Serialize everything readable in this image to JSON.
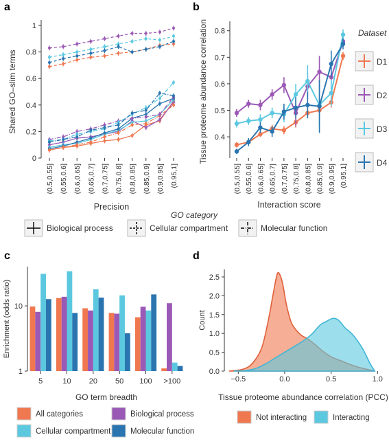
{
  "colors": {
    "D1": "#F07850",
    "D2": "#9B59B6",
    "D3": "#5BC8E0",
    "D4": "#2A75B0",
    "c_all": "#F07850",
    "c_cc": "#5BC8E0",
    "c_bp": "#9B59B6",
    "c_mf": "#2A75B0",
    "d_not": "#F07850",
    "d_int": "#5BC8E0"
  },
  "chart_data": [
    {
      "panel": "a",
      "type": "line",
      "xlabel": "Precision",
      "ylabel": "Shared GO–slim terms",
      "ylim": [
        0,
        1
      ],
      "yticks": [
        "0",
        "0.2",
        "0.4",
        "0.6",
        "0.8",
        "1"
      ],
      "categories": [
        "(0.5,0.55]",
        "(0.55,0.6]",
        "(0.6,0.65]",
        "(0.65,0.7]",
        "(0.7,0.75]",
        "(0.75,0.8]",
        "(0.8,0.85]",
        "(0.85,0.9]",
        "(0.9,0.95]",
        "(0.95,1]"
      ],
      "legend_title": "GO category",
      "legend": [
        "Biological process",
        "Cellular compartment",
        "Molecular function"
      ],
      "series": [
        {
          "name": "D1",
          "group": "Biological process",
          "values": [
            0.06,
            0.08,
            0.09,
            0.11,
            0.13,
            0.14,
            0.17,
            0.25,
            0.28,
            0.43
          ]
        },
        {
          "name": "D2",
          "group": "Biological process",
          "values": [
            0.1,
            0.12,
            0.15,
            0.16,
            0.18,
            0.2,
            0.28,
            0.23,
            0.29,
            0.42
          ]
        },
        {
          "name": "D3",
          "group": "Biological process",
          "values": [
            0.08,
            0.1,
            0.11,
            0.14,
            0.18,
            0.21,
            0.27,
            0.28,
            0.33,
            0.44
          ]
        },
        {
          "name": "D4",
          "group": "Biological process",
          "values": [
            0.07,
            0.09,
            0.12,
            0.15,
            0.19,
            0.22,
            0.3,
            0.33,
            0.41,
            0.45
          ]
        },
        {
          "name": "D1",
          "group": "Cellular compartment",
          "values": [
            0.69,
            0.71,
            0.74,
            0.76,
            0.77,
            0.79,
            0.8,
            0.82,
            0.85,
            0.86
          ]
        },
        {
          "name": "D2",
          "group": "Cellular compartment",
          "values": [
            0.83,
            0.84,
            0.86,
            0.88,
            0.9,
            0.92,
            0.94,
            0.94,
            0.95,
            0.98
          ]
        },
        {
          "name": "D3",
          "group": "Cellular compartment",
          "values": [
            0.76,
            0.78,
            0.8,
            0.82,
            0.84,
            0.86,
            0.88,
            0.9,
            0.89,
            0.92
          ]
        },
        {
          "name": "D4",
          "group": "Cellular compartment",
          "values": [
            0.72,
            0.75,
            0.77,
            0.79,
            0.81,
            0.84,
            0.8,
            0.82,
            0.84,
            0.88
          ]
        },
        {
          "name": "D1",
          "group": "Molecular function",
          "values": [
            0.06,
            0.08,
            0.1,
            0.12,
            0.16,
            0.19,
            0.25,
            0.26,
            0.32,
            0.4
          ]
        },
        {
          "name": "D2",
          "group": "Molecular function",
          "values": [
            0.14,
            0.16,
            0.2,
            0.22,
            0.25,
            0.28,
            0.3,
            0.31,
            0.33,
            0.46
          ]
        },
        {
          "name": "D3",
          "group": "Molecular function",
          "values": [
            0.13,
            0.14,
            0.18,
            0.2,
            0.22,
            0.27,
            0.33,
            0.38,
            0.45,
            0.57
          ]
        },
        {
          "name": "D4",
          "group": "Molecular function",
          "values": [
            0.12,
            0.14,
            0.16,
            0.21,
            0.23,
            0.25,
            0.34,
            0.36,
            0.49,
            0.47
          ]
        }
      ]
    },
    {
      "panel": "b",
      "type": "line",
      "xlabel": "Interaction score",
      "ylabel": "Tissue proteome abundance correlation",
      "ylim": [
        0.32,
        0.82
      ],
      "yticks": [
        "0.4",
        "0.5",
        "0.6",
        "0.7",
        "0.8"
      ],
      "categories": [
        "(0.5,0.55]",
        "(0.55,0.6]",
        "(0.6,0.65]",
        "(0.65,0.7]",
        "(0.7,0.75]",
        "(0.75,0.8]",
        "(0.8,0.85]",
        "(0.85,0.9]",
        "(0.9,0.95]",
        "(0.95,1]"
      ],
      "legend_title": "Dataset",
      "legend": [
        "D1",
        "D2",
        "D3",
        "D4"
      ],
      "series": [
        {
          "name": "D1",
          "values": [
            0.37,
            0.38,
            0.41,
            0.43,
            0.425,
            0.455,
            0.49,
            0.5,
            0.53,
            0.705
          ],
          "err": [
            0.01,
            0.01,
            0.01,
            0.015,
            0.015,
            0.02,
            0.02,
            0.02,
            0.02,
            0.015
          ]
        },
        {
          "name": "D2",
          "values": [
            0.49,
            0.525,
            0.52,
            0.56,
            0.595,
            0.49,
            0.59,
            0.645,
            0.625,
            0.76
          ],
          "err": [
            0.015,
            0.015,
            0.02,
            0.02,
            0.03,
            0.05,
            0.05,
            0.06,
            0.05,
            0.02
          ]
        },
        {
          "name": "D3",
          "values": [
            0.45,
            0.46,
            0.465,
            0.49,
            0.485,
            0.56,
            0.61,
            0.52,
            0.565,
            0.785
          ],
          "err": [
            0.015,
            0.015,
            0.02,
            0.02,
            0.03,
            0.04,
            0.06,
            0.08,
            0.05,
            0.02
          ]
        },
        {
          "name": "D4",
          "values": [
            0.345,
            0.38,
            0.435,
            0.42,
            0.495,
            0.51,
            0.52,
            0.515,
            0.675,
            0.75
          ],
          "err": [
            0.01,
            0.015,
            0.02,
            0.02,
            0.03,
            0.04,
            0.05,
            0.1,
            0.05,
            0.02
          ]
        }
      ]
    },
    {
      "panel": "c",
      "type": "bar",
      "xlabel": "GO term breadth",
      "ylabel": "Enrichment (odds ratio)",
      "scale": "log",
      "yticks": [
        "1",
        "10"
      ],
      "categories": [
        "5",
        "10",
        "20",
        "50",
        "100",
        ">100"
      ],
      "series": [
        {
          "name": "All categories",
          "values": [
            9.8,
            13.2,
            9.2,
            7.8,
            6.7,
            1.1
          ]
        },
        {
          "name": "Biological process",
          "values": [
            8.1,
            13.8,
            8.5,
            7.6,
            9.7,
            11.0
          ]
        },
        {
          "name": "Cellular compartment",
          "values": [
            31.0,
            34.0,
            18.0,
            14.5,
            8.5,
            1.35
          ]
        },
        {
          "name": "Molecular function",
          "values": [
            12.7,
            7.8,
            13.4,
            3.8,
            15.0,
            1.2
          ]
        }
      ]
    },
    {
      "panel": "d",
      "type": "area",
      "xlabel": "Tissue proteome abundance correlation (PCC)",
      "ylabel": "Count",
      "xlim": [
        -0.65,
        1.05
      ],
      "ylim": [
        0,
        2.7
      ],
      "xticks": [
        "−0.5",
        "0.0",
        "0.5",
        "1.0"
      ],
      "yticks": [
        "0.0",
        "0.5",
        "1.0",
        "1.5",
        "2.0",
        "2.5"
      ],
      "series": [
        {
          "name": "Not interacting",
          "x": [
            -0.6,
            -0.45,
            -0.35,
            -0.25,
            -0.18,
            -0.12,
            -0.08,
            -0.05,
            -0.02,
            0.02,
            0.07,
            0.12,
            0.18,
            0.25,
            0.32,
            0.4,
            0.5,
            0.6,
            0.7,
            0.8,
            0.9,
            0.97
          ],
          "y": [
            0.0,
            0.05,
            0.2,
            0.6,
            1.3,
            2.1,
            2.58,
            2.55,
            2.3,
            1.75,
            1.3,
            1.1,
            0.95,
            0.85,
            0.72,
            0.55,
            0.38,
            0.28,
            0.18,
            0.1,
            0.04,
            0.0
          ]
        },
        {
          "name": "Interacting",
          "x": [
            -0.55,
            -0.4,
            -0.3,
            -0.2,
            -0.1,
            0.0,
            0.1,
            0.2,
            0.3,
            0.38,
            0.45,
            0.52,
            0.58,
            0.65,
            0.72,
            0.78,
            0.85,
            0.92,
            0.97
          ],
          "y": [
            0.0,
            0.02,
            0.08,
            0.2,
            0.35,
            0.5,
            0.65,
            0.8,
            1.0,
            1.22,
            1.32,
            1.4,
            1.35,
            1.15,
            1.0,
            0.82,
            0.55,
            0.2,
            0.0
          ]
        }
      ]
    }
  ],
  "panel_labels": [
    "a",
    "b",
    "c",
    "d"
  ],
  "legend_d": [
    "Not interacting",
    "Interacting"
  ],
  "legend_c": [
    "All categories",
    "Biological process",
    "Cellular compartment",
    "Molecular function"
  ]
}
